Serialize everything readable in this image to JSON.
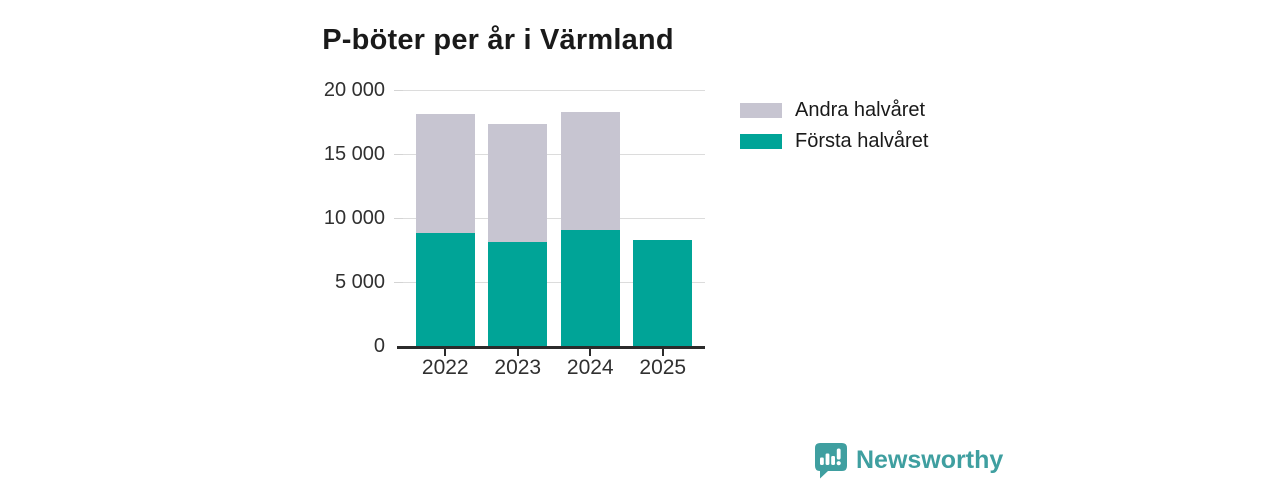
{
  "title": "P-böter per år i Värmland",
  "chart_data": {
    "type": "bar",
    "stacked": true,
    "title": "P-böter per år i Värmland",
    "categories": [
      "2022",
      "2023",
      "2024",
      "2025"
    ],
    "series": [
      {
        "name": "Första halvåret",
        "color": "#00a497",
        "values": [
          8800,
          8100,
          9100,
          8300
        ]
      },
      {
        "name": "Andra halvåret",
        "color": "#c7c5d1",
        "values": [
          9350,
          9250,
          9150,
          0
        ]
      }
    ],
    "ylim": [
      0,
      20000
    ],
    "yticks": {
      "values": [
        0,
        5000,
        10000,
        15000,
        20000
      ],
      "labels": [
        "0",
        "5 000",
        "10 000",
        "15 000",
        "20 000"
      ]
    },
    "grid": "horizontal",
    "legend_position": "right"
  },
  "legend": {
    "items": [
      {
        "label": "Andra halvåret",
        "series_index": 1
      },
      {
        "label": "Första halvåret",
        "series_index": 0
      }
    ]
  },
  "footer": {
    "brand": "Newsworthy"
  },
  "colors": {
    "first_half": "#00a497",
    "second_half": "#c7c5d1",
    "axis": "#2b2b2b",
    "grid": "#dcdcdc",
    "text": "#1a1a1a",
    "brand_teal": "#3f9fa0"
  }
}
